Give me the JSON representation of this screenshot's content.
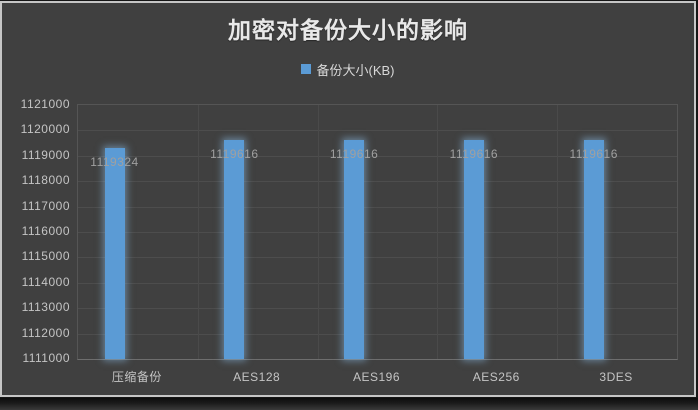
{
  "chart_data": {
    "type": "bar",
    "title": "加密对备份大小的影响",
    "legend": {
      "label": "备份大小(KB)",
      "position": "top",
      "marker_color": "#5B9BD5"
    },
    "categories": [
      "压缩备份",
      "AES128",
      "AES196",
      "AES256",
      "3DES"
    ],
    "series": [
      {
        "name": "备份大小(KB)",
        "color": "#5B9BD5",
        "values": [
          1119324,
          1119616,
          1119616,
          1119616,
          1119616
        ]
      }
    ],
    "data_labels": [
      "1119324",
      "1119616",
      "1119616",
      "1119616",
      "1119616"
    ],
    "xlabel": "",
    "ylabel": "",
    "ylim": [
      1111000,
      1121000
    ],
    "ytick_step": 1000,
    "yticks": [
      "1121000",
      "1120000",
      "1119000",
      "1118000",
      "1117000",
      "1116000",
      "1115000",
      "1114000",
      "1113000",
      "1112000",
      "1111000"
    ],
    "grid": true,
    "legend_position": "top"
  },
  "colors": {
    "background": "#404040",
    "frame_border": "#C6C6C6",
    "outer_dark": "#161616",
    "gridline": "#4D4D4D",
    "plot_border": "#555555",
    "bar_fill": "#5B9BD5",
    "bar_glow": "#8FC3EE",
    "title_text": "#E9E9E9",
    "legend_text": "#D8D8D8",
    "tick_text": "#C4C4C4",
    "category_text": "#C4C4C4",
    "data_label_text": "#A0A0A0"
  }
}
